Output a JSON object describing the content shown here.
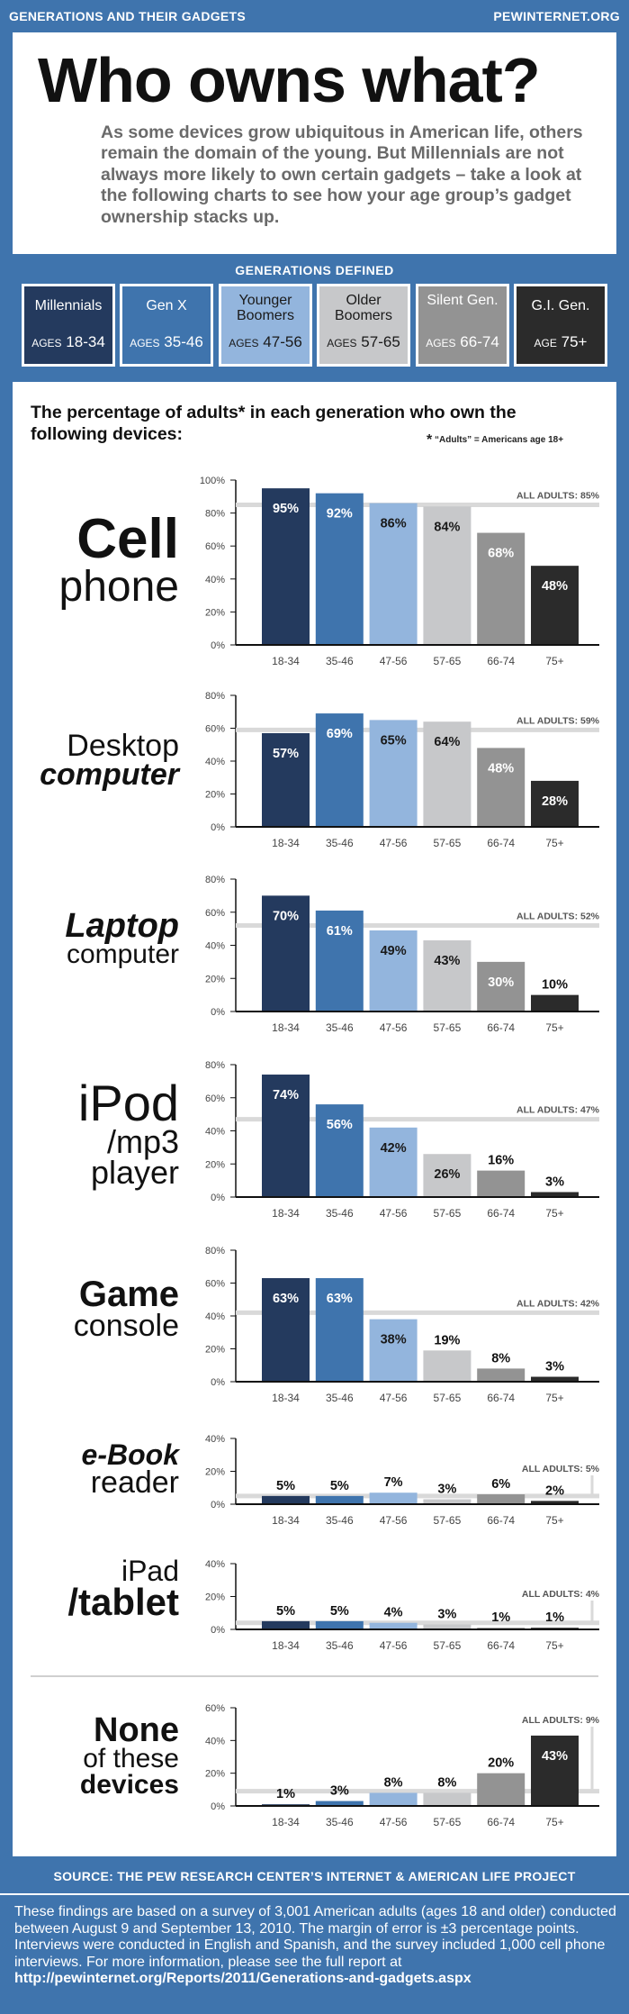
{
  "header": {
    "left": "GENERATIONS AND THEIR GADGETS",
    "right": "PEWINTERNET.ORG"
  },
  "hero": {
    "title": "Who owns what?",
    "intro": "As some devices grow ubiquitous in American life, others remain the domain of the young. But Millennials are not always more likely to own certain gadgets – take a look at the following charts to see how your age group’s gadget ownership stacks up."
  },
  "generations": {
    "title": "GENERATIONS DEFINED",
    "items": [
      {
        "name": "Millennials",
        "age_prefix": "AGES",
        "ages": "18-34",
        "bg": "#243a5e",
        "fg": "#ffffff"
      },
      {
        "name": "Gen X",
        "age_prefix": "AGES",
        "ages": "35-46",
        "bg": "#3f74ad",
        "fg": "#ffffff"
      },
      {
        "name": "Younger Boomers",
        "age_prefix": "AGES",
        "ages": "47-56",
        "bg": "#93b5dd",
        "fg": "#1a1a1a"
      },
      {
        "name": "Older Boomers",
        "age_prefix": "AGES",
        "ages": "57-65",
        "bg": "#c7c8ca",
        "fg": "#1a1a1a"
      },
      {
        "name": "Silent Gen.",
        "age_prefix": "AGES",
        "ages": "66-74",
        "bg": "#939393",
        "fg": "#ffffff"
      },
      {
        "name": "G.I. Gen.",
        "age_prefix": "AGE",
        "ages": "75+",
        "bg": "#2b2b2b",
        "fg": "#ffffff"
      }
    ]
  },
  "main": {
    "heading": "The percentage of adults* in each generation who own the following devices:",
    "footnote_star": "*",
    "footnote": "“Adults” = Americans age 18+"
  },
  "colors": {
    "bars": [
      "#243a5e",
      "#3f74ad",
      "#93b5dd",
      "#c7c8ca",
      "#939393",
      "#2b2b2b"
    ],
    "label_text": [
      "#ffffff",
      "#ffffff",
      "#1a1a1a",
      "#1a1a1a",
      "#ffffff",
      "#ffffff"
    ],
    "reference_line": "#d9d9d9"
  },
  "chart_data": [
    {
      "type": "bar",
      "device_line1": "Cell",
      "device_line2": "phone",
      "device_line3": "",
      "categories": [
        "18-34",
        "35-46",
        "47-56",
        "57-65",
        "66-74",
        "75+"
      ],
      "values": [
        95,
        92,
        86,
        84,
        68,
        48
      ],
      "value_labels": [
        "95%",
        "92%",
        "86%",
        "84%",
        "68%",
        "48%"
      ],
      "ylim": [
        0,
        100
      ],
      "yticks": [
        "0%",
        "20%",
        "40%",
        "60%",
        "80%",
        "100%"
      ],
      "reference_value": 85,
      "reference_label": "ALL ADULTS: 85%"
    },
    {
      "type": "bar",
      "device_line1": "Desktop",
      "device_line2": "computer",
      "device_line3": "",
      "categories": [
        "18-34",
        "35-46",
        "47-56",
        "57-65",
        "66-74",
        "75+"
      ],
      "values": [
        57,
        69,
        65,
        64,
        48,
        28
      ],
      "value_labels": [
        "57%",
        "69%",
        "65%",
        "64%",
        "48%",
        "28%"
      ],
      "ylim": [
        0,
        80
      ],
      "yticks": [
        "0%",
        "20%",
        "40%",
        "60%",
        "80%"
      ],
      "reference_value": 59,
      "reference_label": "ALL ADULTS: 59%"
    },
    {
      "type": "bar",
      "device_line1": "Laptop",
      "device_line2": "computer",
      "device_line3": "",
      "categories": [
        "18-34",
        "35-46",
        "47-56",
        "57-65",
        "66-74",
        "75+"
      ],
      "values": [
        70,
        61,
        49,
        43,
        30,
        10
      ],
      "value_labels": [
        "70%",
        "61%",
        "49%",
        "43%",
        "30%",
        "10%"
      ],
      "ylim": [
        0,
        80
      ],
      "yticks": [
        "0%",
        "20%",
        "40%",
        "60%",
        "80%"
      ],
      "reference_value": 52,
      "reference_label": "ALL ADULTS: 52%"
    },
    {
      "type": "bar",
      "device_line1": "iPod",
      "device_line2": "/mp3",
      "device_line3": "player",
      "categories": [
        "18-34",
        "35-46",
        "47-56",
        "57-65",
        "66-74",
        "75+"
      ],
      "values": [
        74,
        56,
        42,
        26,
        16,
        3
      ],
      "value_labels": [
        "74%",
        "56%",
        "42%",
        "26%",
        "16%",
        "3%"
      ],
      "ylim": [
        0,
        80
      ],
      "yticks": [
        "0%",
        "20%",
        "40%",
        "60%",
        "80%"
      ],
      "reference_value": 47,
      "reference_label": "ALL ADULTS: 47%"
    },
    {
      "type": "bar",
      "device_line1": "Game",
      "device_line2": "console",
      "device_line3": "",
      "categories": [
        "18-34",
        "35-46",
        "47-56",
        "57-65",
        "66-74",
        "75+"
      ],
      "values": [
        63,
        63,
        38,
        19,
        8,
        3
      ],
      "value_labels": [
        "63%",
        "63%",
        "38%",
        "19%",
        "8%",
        "3%"
      ],
      "ylim": [
        0,
        80
      ],
      "yticks": [
        "0%",
        "20%",
        "40%",
        "60%",
        "80%"
      ],
      "reference_value": 42,
      "reference_label": "ALL ADULTS: 42%"
    },
    {
      "type": "bar",
      "device_line1": "e-Book",
      "device_line2": "reader",
      "device_line3": "",
      "categories": [
        "18-34",
        "35-46",
        "47-56",
        "57-65",
        "66-74",
        "75+"
      ],
      "values": [
        5,
        5,
        7,
        3,
        6,
        2
      ],
      "value_labels": [
        "5%",
        "5%",
        "7%",
        "3%",
        "6%",
        "2%"
      ],
      "ylim": [
        0,
        40
      ],
      "yticks": [
        "0%",
        "20%",
        "40%"
      ],
      "reference_value": 5,
      "reference_label": "ALL ADULTS: 5%"
    },
    {
      "type": "bar",
      "device_line1": "iPad",
      "device_line2": "/tablet",
      "device_line3": "",
      "categories": [
        "18-34",
        "35-46",
        "47-56",
        "57-65",
        "66-74",
        "75+"
      ],
      "values": [
        5,
        5,
        4,
        3,
        1,
        1
      ],
      "value_labels": [
        "5%",
        "5%",
        "4%",
        "3%",
        "1%",
        "1%"
      ],
      "ylim": [
        0,
        40
      ],
      "yticks": [
        "0%",
        "20%",
        "40%"
      ],
      "reference_value": 4,
      "reference_label": "ALL ADULTS: 4%"
    },
    {
      "type": "bar",
      "device_line1": "None",
      "device_line2": "of these",
      "device_line3": "devices",
      "categories": [
        "18-34",
        "35-46",
        "47-56",
        "57-65",
        "66-74",
        "75+"
      ],
      "values": [
        1,
        3,
        8,
        8,
        20,
        43
      ],
      "value_labels": [
        "1%",
        "3%",
        "8%",
        "8%",
        "20%",
        "43%"
      ],
      "ylim": [
        0,
        60
      ],
      "yticks": [
        "0%",
        "20%",
        "40%",
        "60%"
      ],
      "reference_value": 9,
      "reference_label": "ALL ADULTS: 9%"
    }
  ],
  "footer": {
    "source": "SOURCE: THE PEW RESEARCH CENTER’S INTERNET & AMERICAN LIFE PROJECT",
    "text": "These findings are based on a survey of 3,001 American adults (ages 18 and older) conducted between August 9 and September 13, 2010. The margin of error is ±3 percentage points. Interviews were conducted in English and Spanish, and the survey included 1,000 cell phone interviews. For more information, please see the full report at",
    "url": "http://pewinternet.org/Reports/2011/Generations-and-gadgets.aspx"
  }
}
